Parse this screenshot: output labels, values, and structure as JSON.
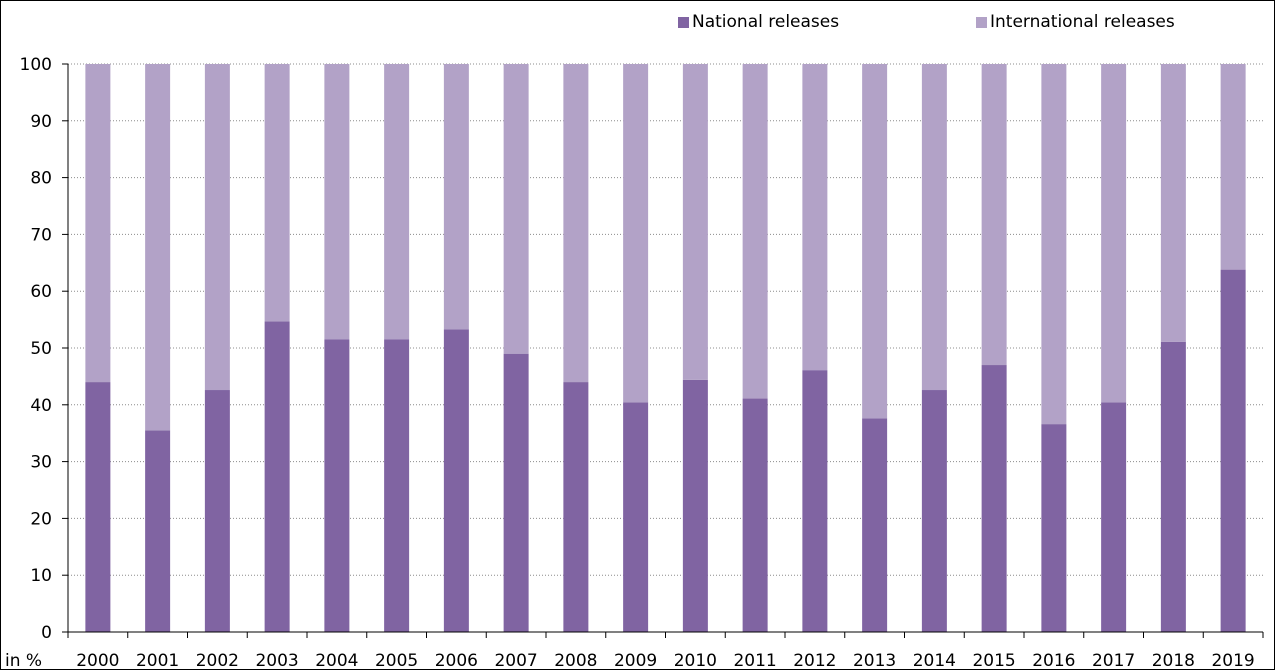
{
  "chart_data": {
    "type": "bar",
    "stacked": true,
    "normalized_to": 100,
    "categories": [
      "2000",
      "2001",
      "2002",
      "2003",
      "2004",
      "2005",
      "2006",
      "2007",
      "2008",
      "2009",
      "2010",
      "2011",
      "2012",
      "2013",
      "2014",
      "2015",
      "2016",
      "2017",
      "2018",
      "2019"
    ],
    "series": [
      {
        "name": "National releases",
        "color": "#8064a2",
        "values": [
          44,
          35.5,
          42.6,
          54.7,
          51.5,
          51.5,
          53.3,
          49,
          44,
          40.4,
          44.4,
          41.1,
          46.1,
          37.6,
          42.6,
          47,
          36.6,
          40.4,
          51.1,
          63.8
        ]
      },
      {
        "name": "International releases",
        "color": "#b2a2c7",
        "values": [
          56,
          64.5,
          57.4,
          45.3,
          48.5,
          48.5,
          46.7,
          51,
          56,
          59.6,
          55.6,
          58.9,
          53.9,
          62.4,
          57.4,
          53,
          63.4,
          59.6,
          48.9,
          36.2
        ]
      }
    ],
    "xlabel": "",
    "ylabel": "",
    "y_unit_label": "in %",
    "ylim": [
      0,
      100
    ],
    "yticks": [
      0,
      10,
      20,
      30,
      40,
      50,
      60,
      70,
      80,
      90,
      100
    ],
    "grid": "horizontal dotted",
    "legend_position": "top-right"
  }
}
